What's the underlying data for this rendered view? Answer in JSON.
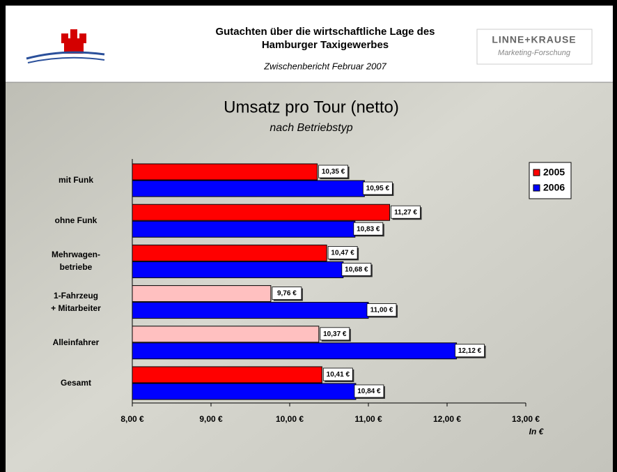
{
  "header": {
    "title_lines": [
      "Gutachten über die wirtschaftliche Lage des",
      "Hamburger Taxigewerbes"
    ],
    "subtitle": "Zwischenbericht Februar 2007",
    "logo_name": "LINNE+KRAUSE",
    "logo_sub": "Marketing-Forschung"
  },
  "chart_data": {
    "type": "hbar",
    "title": "Umsatz pro Tour (netto)",
    "subtitle": "nach Betriebstyp",
    "x_label": "In €",
    "categories": [
      "mit Funk",
      "ohne Funk",
      "Mehrwagen-\nbetriebe",
      "1-Fahrzeug\n+ Mitarbeiter",
      "Alleinfahrer",
      "Gesamt"
    ],
    "series": [
      {
        "name": "2005",
        "color": "#ff0000",
        "colors": [
          "#ff0000",
          "#ff0000",
          "#ff0000",
          "#ffc0c0",
          "#ffc0c0",
          "#ff0000"
        ],
        "values": [
          10.35,
          11.27,
          10.47,
          9.76,
          10.37,
          10.41
        ],
        "value_labels": [
          "10,35 €",
          "11,27 €",
          "10,47 €",
          "9,76 €",
          "10,37 €",
          "10,41 €"
        ]
      },
      {
        "name": "2006",
        "color": "#0000ff",
        "values": [
          10.95,
          10.83,
          10.68,
          11.0,
          12.12,
          10.84
        ],
        "value_labels": [
          "10,95 €",
          "10,83 €",
          "10,68 €",
          "11,00 €",
          "12,12 €",
          "10,84 €"
        ]
      }
    ],
    "xlim": [
      8,
      13
    ],
    "xticks": [
      {
        "value": 8,
        "label": "8,00 €"
      },
      {
        "value": 9,
        "label": "9,00 €"
      },
      {
        "value": 10,
        "label": "10,00 €"
      },
      {
        "value": 11,
        "label": "11,00 €"
      },
      {
        "value": 12,
        "label": "12,00 €"
      },
      {
        "value": 13,
        "label": "13,00 €"
      }
    ],
    "legend": "top-right"
  }
}
